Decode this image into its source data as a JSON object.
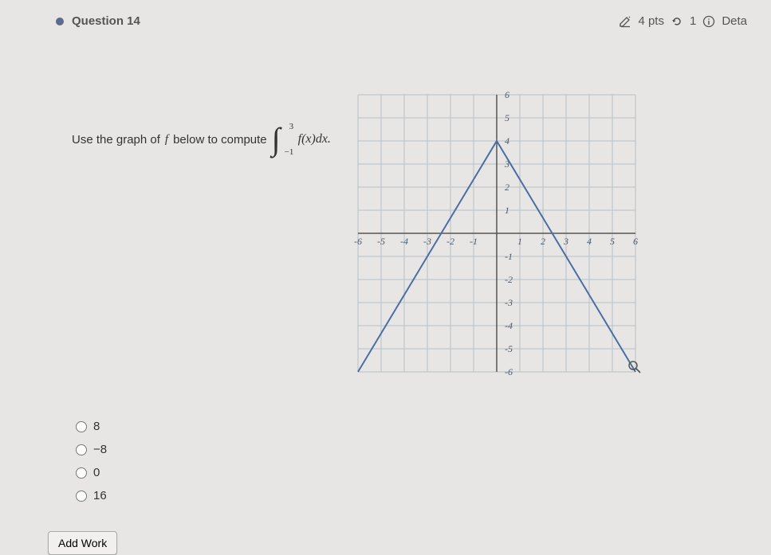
{
  "header": {
    "question_label": "Question 14",
    "points_text": "4 pts",
    "attempts_text": "1",
    "details_text": "Deta"
  },
  "prompt": {
    "text_before": "Use the graph of ",
    "fn": "f",
    "text_mid": " below to compute ",
    "integral_upper": "3",
    "integral_lower": "−1",
    "integrand": "f(x)dx."
  },
  "chart": {
    "type": "line",
    "xmin": -6,
    "xmax": 6,
    "ymin": -6,
    "ymax": 6,
    "xtick_step": 1,
    "ytick_step": 1,
    "grid_color": "#b8c0c7",
    "axis_color": "#555",
    "line_color": "#4a6fa5",
    "line_width": 2,
    "background_color": "#e8e6e4",
    "label_color": "#4a5a6a",
    "label_fontsize": 12,
    "points": [
      [
        -6,
        -6
      ],
      [
        0,
        4
      ],
      [
        6,
        -6
      ]
    ],
    "x_labels": [
      [
        -6,
        "-6"
      ],
      [
        -5,
        "-5"
      ],
      [
        -4,
        "-4"
      ],
      [
        -3,
        "-3"
      ],
      [
        -2,
        "-2"
      ],
      [
        -1,
        "-1"
      ],
      [
        1,
        "1"
      ],
      [
        2,
        "2"
      ],
      [
        3,
        "3"
      ],
      [
        4,
        "4"
      ],
      [
        5,
        "5"
      ],
      [
        6,
        "6"
      ]
    ],
    "y_labels": [
      [
        -6,
        "-6"
      ],
      [
        -5,
        "-5"
      ],
      [
        -4,
        "-4"
      ],
      [
        -3,
        "-3"
      ],
      [
        -2,
        "-2"
      ],
      [
        -1,
        "-1"
      ],
      [
        1,
        "1"
      ],
      [
        2,
        "2"
      ],
      [
        3,
        "3"
      ],
      [
        4,
        "4"
      ],
      [
        5,
        "5"
      ],
      [
        6,
        "6"
      ]
    ]
  },
  "options": [
    {
      "label": "8"
    },
    {
      "label": "−8"
    },
    {
      "label": "0"
    },
    {
      "label": "16"
    }
  ],
  "buttons": {
    "add_work": "Add Work"
  }
}
